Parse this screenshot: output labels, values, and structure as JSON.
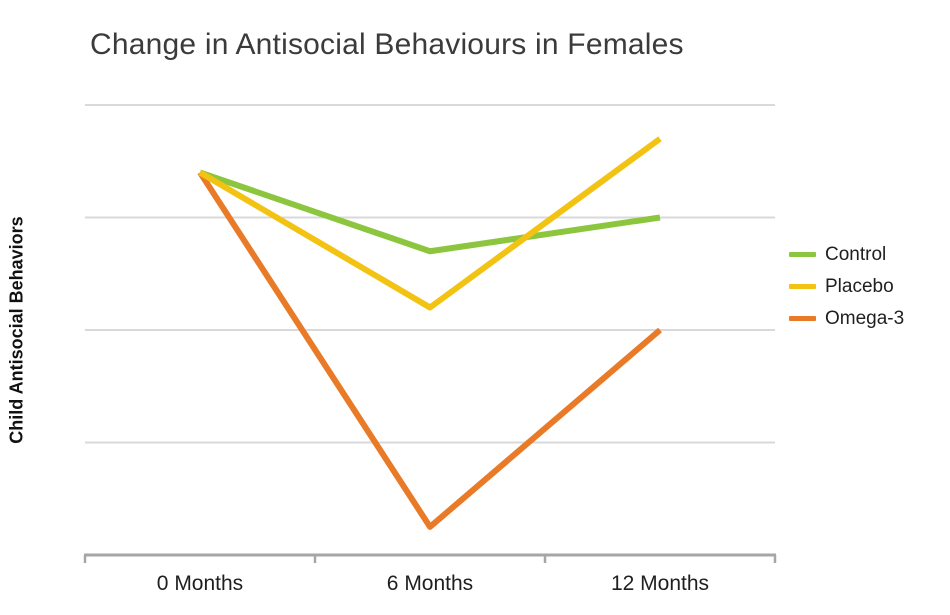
{
  "chart_data": {
    "type": "line",
    "title": "Change in Antisocial Behaviours in Females",
    "xlabel": "",
    "ylabel": "Child Antisocial Behaviors",
    "categories": [
      "0 Months",
      "6 Months",
      "12 Months"
    ],
    "series": [
      {
        "name": "Control",
        "color": "#8cc63e",
        "values": [
          3.4,
          2.7,
          3.0
        ]
      },
      {
        "name": "Placebo",
        "color": "#f2c313",
        "values": [
          3.4,
          2.2,
          3.7
        ]
      },
      {
        "name": "Omega-3",
        "color": "#e87a28",
        "values": [
          3.4,
          0.25,
          2.0
        ]
      }
    ],
    "ylim": [
      0,
      4
    ],
    "gridlines": [
      1,
      2,
      3,
      4
    ],
    "y_tick_labels_shown": false,
    "legend_position": "right",
    "grid_color": "#d9d9d9",
    "axis_color": "#a6a6a6"
  }
}
